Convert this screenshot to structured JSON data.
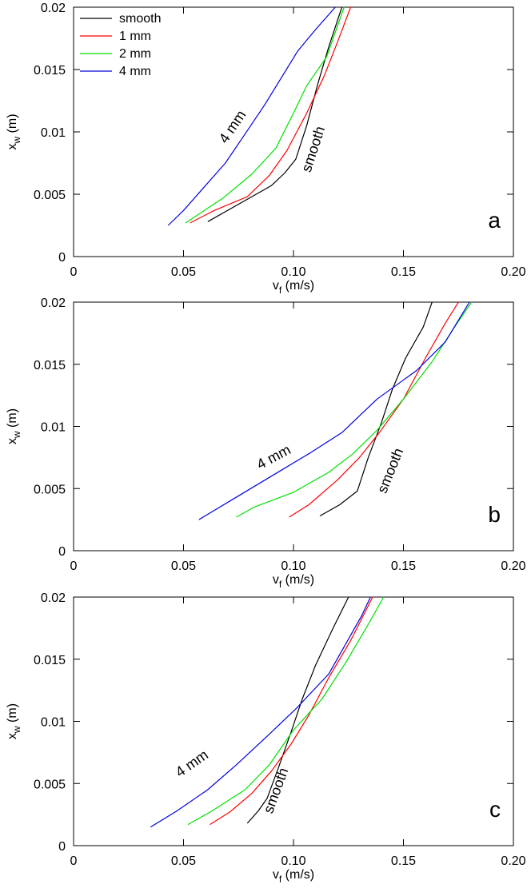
{
  "chart_data": [
    {
      "type": "line",
      "panel_label": "a",
      "xlabel_main": "v",
      "xlabel_sub": "f",
      "xlabel_unit": " (m/s)",
      "ylabel_main": "x",
      "ylabel_sub": "w",
      "ylabel_unit": " (m)",
      "xlim": [
        0,
        0.2
      ],
      "ylim": [
        0,
        0.02
      ],
      "x_ticks": [
        "0",
        "0.05",
        "0.10",
        "0.15",
        "0.20"
      ],
      "y_ticks": [
        "0",
        "0.005",
        "0.01",
        "0.015",
        "0.02"
      ],
      "grid": false,
      "legend": {
        "placement": "top-left",
        "entries": [
          {
            "label": "smooth",
            "color": "#000000"
          },
          {
            "label": "1 mm",
            "color": "#ff0000"
          },
          {
            "label": "2 mm",
            "color": "#00e000"
          },
          {
            "label": "4 mm",
            "color": "#0000e0"
          }
        ]
      },
      "annotations": [
        {
          "text": "4 mm",
          "x": 0.074,
          "y": 0.0102,
          "rotation": -56
        },
        {
          "text": "smooth",
          "x": 0.111,
          "y": 0.0085,
          "rotation": -72
        }
      ],
      "series": [
        {
          "name": "smooth",
          "color": "#000000",
          "points": [
            [
              0.061,
              0.0028
            ],
            [
              0.075,
              0.0042
            ],
            [
              0.09,
              0.0057
            ],
            [
              0.096,
              0.0067
            ],
            [
              0.101,
              0.0078
            ],
            [
              0.106,
              0.0105
            ],
            [
              0.111,
              0.0138
            ],
            [
              0.116,
              0.0168
            ],
            [
              0.122,
              0.02
            ]
          ]
        },
        {
          "name": "1 mm",
          "color": "#ff0000",
          "points": [
            [
              0.053,
              0.0027
            ],
            [
              0.064,
              0.0037
            ],
            [
              0.079,
              0.0048
            ],
            [
              0.089,
              0.0065
            ],
            [
              0.097,
              0.0085
            ],
            [
              0.106,
              0.0115
            ],
            [
              0.114,
              0.0145
            ],
            [
              0.12,
              0.0172
            ],
            [
              0.126,
              0.02
            ]
          ]
        },
        {
          "name": "2 mm",
          "color": "#00e000",
          "points": [
            [
              0.051,
              0.0027
            ],
            [
              0.068,
              0.0047
            ],
            [
              0.081,
              0.0066
            ],
            [
              0.092,
              0.0087
            ],
            [
              0.1,
              0.0115
            ],
            [
              0.106,
              0.0137
            ],
            [
              0.115,
              0.016
            ],
            [
              0.123,
              0.02
            ]
          ]
        },
        {
          "name": "4 mm",
          "color": "#0000e0",
          "points": [
            [
              0.043,
              0.0025
            ],
            [
              0.05,
              0.0037
            ],
            [
              0.059,
              0.0055
            ],
            [
              0.069,
              0.0075
            ],
            [
              0.079,
              0.0101
            ],
            [
              0.087,
              0.0122
            ],
            [
              0.095,
              0.0145
            ],
            [
              0.102,
              0.0165
            ],
            [
              0.11,
              0.0182
            ],
            [
              0.119,
              0.02
            ]
          ]
        }
      ]
    },
    {
      "type": "line",
      "panel_label": "b",
      "xlabel_main": "v",
      "xlabel_sub": "f",
      "xlabel_unit": " (m/s)",
      "ylabel_main": "x",
      "ylabel_sub": "w",
      "ylabel_unit": " (m)",
      "xlim": [
        0,
        0.2
      ],
      "ylim": [
        0,
        0.02
      ],
      "x_ticks": [
        "0",
        "0.05",
        "0.10",
        "0.15",
        "0.20"
      ],
      "y_ticks": [
        "0",
        "0.005",
        "0.01",
        "0.015",
        "0.02"
      ],
      "grid": false,
      "annotations": [
        {
          "text": "4 mm",
          "x": 0.092,
          "y": 0.0072,
          "rotation": -28
        },
        {
          "text": "smooth",
          "x": 0.146,
          "y": 0.0063,
          "rotation": -68
        }
      ],
      "series": [
        {
          "name": "smooth",
          "color": "#000000",
          "points": [
            [
              0.112,
              0.0028
            ],
            [
              0.121,
              0.0037
            ],
            [
              0.129,
              0.0048
            ],
            [
              0.134,
              0.0075
            ],
            [
              0.14,
              0.0103
            ],
            [
              0.145,
              0.013
            ],
            [
              0.151,
              0.0155
            ],
            [
              0.159,
              0.018
            ],
            [
              0.163,
              0.02
            ]
          ]
        },
        {
          "name": "1 mm",
          "color": "#ff0000",
          "points": [
            [
              0.098,
              0.0027
            ],
            [
              0.107,
              0.0037
            ],
            [
              0.12,
              0.0057
            ],
            [
              0.13,
              0.0075
            ],
            [
              0.139,
              0.0095
            ],
            [
              0.15,
              0.0122
            ],
            [
              0.16,
              0.0155
            ],
            [
              0.169,
              0.0183
            ],
            [
              0.175,
              0.02
            ]
          ]
        },
        {
          "name": "2 mm",
          "color": "#00e000",
          "points": [
            [
              0.074,
              0.0027
            ],
            [
              0.082,
              0.0035
            ],
            [
              0.1,
              0.0047
            ],
            [
              0.116,
              0.0063
            ],
            [
              0.127,
              0.0078
            ],
            [
              0.138,
              0.0097
            ],
            [
              0.15,
              0.0122
            ],
            [
              0.163,
              0.0152
            ],
            [
              0.174,
              0.0182
            ],
            [
              0.181,
              0.02
            ]
          ]
        },
        {
          "name": "4 mm",
          "color": "#0000e0",
          "points": [
            [
              0.057,
              0.0025
            ],
            [
              0.073,
              0.0042
            ],
            [
              0.09,
              0.006
            ],
            [
              0.107,
              0.0078
            ],
            [
              0.122,
              0.0095
            ],
            [
              0.138,
              0.0122
            ],
            [
              0.156,
              0.0145
            ],
            [
              0.169,
              0.0168
            ],
            [
              0.18,
              0.02
            ]
          ]
        }
      ]
    },
    {
      "type": "line",
      "panel_label": "c",
      "xlabel_main": "v",
      "xlabel_sub": "f",
      "xlabel_unit": " (m/s)",
      "ylabel_main": "x",
      "ylabel_sub": "w",
      "ylabel_unit": " (m)",
      "xlim": [
        0,
        0.2
      ],
      "ylim": [
        0,
        0.02
      ],
      "x_ticks": [
        "0",
        "0.05",
        "0.10",
        "0.15",
        "0.20"
      ],
      "y_ticks": [
        "0",
        "0.005",
        "0.01",
        "0.015",
        "0.02"
      ],
      "grid": false,
      "annotations": [
        {
          "text": "4 mm",
          "x": 0.055,
          "y": 0.0063,
          "rotation": -35
        },
        {
          "text": "smooth",
          "x": 0.094,
          "y": 0.0043,
          "rotation": -70
        }
      ],
      "series": [
        {
          "name": "smooth",
          "color": "#000000",
          "points": [
            [
              0.079,
              0.0018
            ],
            [
              0.084,
              0.0028
            ],
            [
              0.088,
              0.0038
            ],
            [
              0.093,
              0.0062
            ],
            [
              0.099,
              0.0092
            ],
            [
              0.104,
              0.0118
            ],
            [
              0.11,
              0.0145
            ],
            [
              0.118,
              0.0175
            ],
            [
              0.125,
              0.02
            ]
          ]
        },
        {
          "name": "1 mm",
          "color": "#ff0000",
          "points": [
            [
              0.062,
              0.0017
            ],
            [
              0.071,
              0.0027
            ],
            [
              0.081,
              0.0042
            ],
            [
              0.09,
              0.006
            ],
            [
              0.099,
              0.0082
            ],
            [
              0.107,
              0.0105
            ],
            [
              0.116,
              0.0135
            ],
            [
              0.126,
              0.0165
            ],
            [
              0.136,
              0.02
            ]
          ]
        },
        {
          "name": "2 mm",
          "color": "#00e000",
          "points": [
            [
              0.052,
              0.0017
            ],
            [
              0.063,
              0.0028
            ],
            [
              0.078,
              0.0045
            ],
            [
              0.089,
              0.0065
            ],
            [
              0.1,
              0.0093
            ],
            [
              0.113,
              0.0118
            ],
            [
              0.124,
              0.0148
            ],
            [
              0.134,
              0.0178
            ],
            [
              0.141,
              0.02
            ]
          ]
        },
        {
          "name": "4 mm",
          "color": "#0000e0",
          "points": [
            [
              0.035,
              0.0015
            ],
            [
              0.047,
              0.0028
            ],
            [
              0.061,
              0.0045
            ],
            [
              0.074,
              0.0065
            ],
            [
              0.088,
              0.0088
            ],
            [
              0.101,
              0.011
            ],
            [
              0.116,
              0.0138
            ],
            [
              0.131,
              0.0185
            ],
            [
              0.135,
              0.02
            ]
          ]
        }
      ]
    }
  ]
}
